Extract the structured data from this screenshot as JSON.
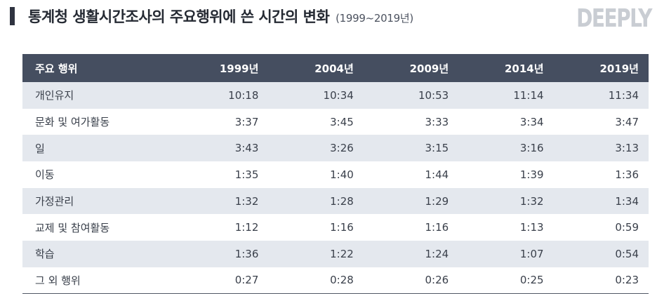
{
  "title": {
    "main": "통계청 생활시간조사의 주요행위에 쓴 시간의 변화",
    "sub": "(1999~2019년)"
  },
  "logo": "DEEPLY",
  "table": {
    "headers": [
      "주요 행위",
      "1999년",
      "2004년",
      "2009년",
      "2014년",
      "2019년"
    ],
    "rows": [
      {
        "label": "개인유지",
        "values": [
          "10:18",
          "10:34",
          "10:53",
          "11:14",
          "11:34"
        ]
      },
      {
        "label": "문화 및 여가활동",
        "values": [
          "3:37",
          "3:45",
          "3:33",
          "3:34",
          "3:47"
        ]
      },
      {
        "label": "일",
        "values": [
          "3:43",
          "3:26",
          "3:15",
          "3:16",
          "3:13"
        ]
      },
      {
        "label": "이동",
        "values": [
          "1:35",
          "1:40",
          "1:44",
          "1:39",
          "1:36"
        ]
      },
      {
        "label": "가정관리",
        "values": [
          "1:32",
          "1:28",
          "1:29",
          "1:32",
          "1:34"
        ]
      },
      {
        "label": "교제 및 참여활동",
        "values": [
          "1:12",
          "1:16",
          "1:16",
          "1:13",
          "0:59"
        ]
      },
      {
        "label": "학습",
        "values": [
          "1:36",
          "1:22",
          "1:24",
          "1:07",
          "0:54"
        ]
      },
      {
        "label": "그 외 행위",
        "values": [
          "0:27",
          "0:28",
          "0:26",
          "0:25",
          "0:23"
        ]
      }
    ]
  },
  "colors": {
    "header_bg": "#454e60",
    "stripe": "#e4e8ee",
    "logo": "#c9cdd3"
  }
}
